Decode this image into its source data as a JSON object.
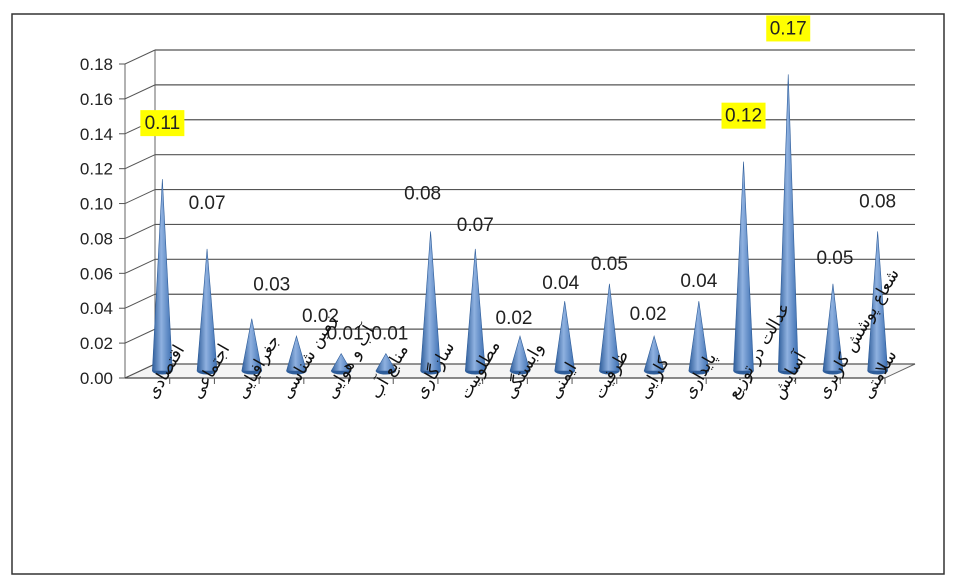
{
  "chart_data": {
    "type": "bar",
    "subtype": "3d-cone",
    "categories": [
      "اقتصادی",
      "اجتماعی",
      "جغرافیایی",
      "زمین شناسی",
      "آب و هوایی",
      "منابع آب",
      "سازگاری",
      "مطلوبیت",
      "وابستگی",
      "ایمنی",
      "ظرفیت",
      "کارایی",
      "پایداری",
      "عدالت در توزیع",
      "آسایش",
      "شعاع پوشش کاربری",
      "سلامتی"
    ],
    "values": [
      0.11,
      0.07,
      0.03,
      0.02,
      0.01,
      0.01,
      0.08,
      0.07,
      0.02,
      0.04,
      0.05,
      0.02,
      0.04,
      0.12,
      0.17,
      0.05,
      0.08
    ],
    "value_labels": [
      "0.11",
      "0.07",
      "0.03",
      "0.02",
      "0.01",
      "0.01",
      "0.08",
      "0.07",
      "0.02",
      "0.04",
      "0.05",
      "0.02",
      "0.04",
      "0.12",
      "0.17",
      "0.05",
      "0.08"
    ],
    "highlighted_labels": [
      0,
      13,
      14
    ],
    "yticks": [
      "0.00",
      "0.02",
      "0.04",
      "0.06",
      "0.08",
      "0.10",
      "0.12",
      "0.14",
      "0.16",
      "0.18"
    ],
    "ylim": [
      0,
      0.18
    ],
    "title": "",
    "xlabel": "",
    "ylabel": "",
    "grid": true,
    "colors": {
      "cone": "#4F81BD",
      "cone_dark": "#2E5D9A",
      "cone_light": "#A9C4E8",
      "highlight": "#FFFF00",
      "grid": "#555555",
      "border": "#333333"
    }
  }
}
